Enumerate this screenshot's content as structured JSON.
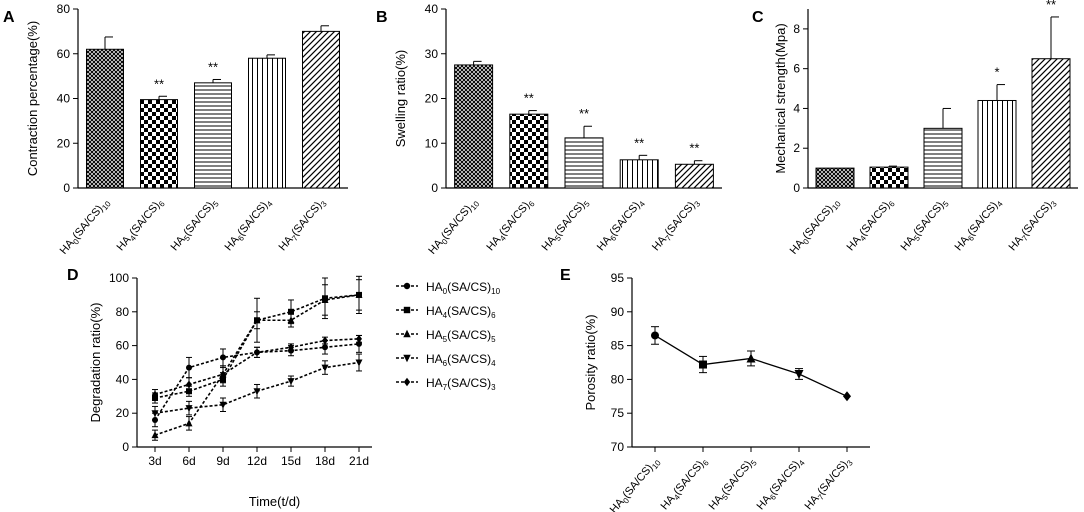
{
  "figure": {
    "categories": [
      {
        "main": "HA",
        "sub1": "0",
        "mid": "(SA/CS)",
        "sub2": "10"
      },
      {
        "main": "HA",
        "sub1": "4",
        "mid": "(SA/CS)",
        "sub2": "6"
      },
      {
        "main": "HA",
        "sub1": "5",
        "mid": "(SA/CS)",
        "sub2": "5"
      },
      {
        "main": "HA",
        "sub1": "6",
        "mid": "(SA/CS)",
        "sub2": "4"
      },
      {
        "main": "HA",
        "sub1": "7",
        "mid": "(SA/CS)",
        "sub2": "3"
      }
    ]
  },
  "chart_data": [
    {
      "panel": "A",
      "type": "bar",
      "title": "",
      "xlabel": "",
      "ylabel": "Contraction percentage(%)",
      "ylim": [
        0,
        80
      ],
      "yticks": [
        0,
        20,
        40,
        60,
        80
      ],
      "values": [
        62,
        39.5,
        47,
        58,
        70
      ],
      "errors": [
        5.5,
        1.5,
        1.5,
        1.5,
        2.5
      ],
      "significance": [
        "",
        "**",
        "**",
        "",
        ""
      ],
      "patterns": [
        "crosshatch",
        "checker",
        "horizontal",
        "vertical",
        "diagonal"
      ]
    },
    {
      "panel": "B",
      "type": "bar",
      "title": "",
      "xlabel": "",
      "ylabel": "Swelling ratio(%)",
      "ylim": [
        0,
        40
      ],
      "yticks": [
        0,
        10,
        20,
        30,
        40
      ],
      "values": [
        27.5,
        16.5,
        11.2,
        6.3,
        5.3
      ],
      "errors": [
        0.8,
        0.8,
        2.6,
        1.0,
        0.8
      ],
      "significance": [
        "",
        "**",
        "**",
        "**",
        "**"
      ],
      "patterns": [
        "crosshatch",
        "checker",
        "horizontal",
        "vertical",
        "diagonal"
      ]
    },
    {
      "panel": "C",
      "type": "bar",
      "title": "",
      "xlabel": "",
      "ylabel": "Mechanical strength(Mpa)",
      "ylim": [
        0,
        9
      ],
      "yticks": [
        0,
        2,
        4,
        6,
        8
      ],
      "values": [
        1.0,
        1.05,
        3.0,
        4.4,
        6.5
      ],
      "errors": [
        0,
        0.05,
        1.0,
        0.8,
        2.1
      ],
      "significance": [
        "",
        "",
        "",
        "*",
        "**"
      ],
      "patterns": [
        "crosshatch",
        "checker",
        "horizontal",
        "vertical",
        "diagonal"
      ]
    },
    {
      "panel": "D",
      "type": "line",
      "title": "",
      "xlabel": "Time(t/d)",
      "ylabel": "Degradation ratio(%)",
      "ylim": [
        0,
        100
      ],
      "yticks": [
        0,
        20,
        40,
        60,
        80,
        100
      ],
      "categories": [
        "3d",
        "6d",
        "9d",
        "12d",
        "15d",
        "18d",
        "21d"
      ],
      "legend_position": "right",
      "series": [
        {
          "name": "HA0(SA/CS)10",
          "marker": "circle",
          "values": [
            16,
            47,
            53,
            56,
            57,
            59,
            61
          ],
          "errors": [
            4,
            6,
            5,
            3,
            3,
            4,
            5
          ]
        },
        {
          "name": "HA4(SA/CS)6",
          "marker": "square",
          "values": [
            29,
            33,
            40,
            75,
            80,
            88,
            90
          ],
          "errors": [
            3,
            3,
            4,
            13,
            7,
            12,
            9
          ]
        },
        {
          "name": "HA5(SA/CS)5",
          "marker": "triangle-up",
          "values": [
            7,
            14,
            43,
            75,
            75,
            87,
            90
          ],
          "errors": [
            3,
            4,
            5,
            5,
            4,
            9,
            11
          ]
        },
        {
          "name": "HA6(SA/CS)4",
          "marker": "triangle-down",
          "values": [
            20,
            23,
            25,
            33,
            39,
            47,
            50
          ],
          "errors": [
            4,
            4,
            4,
            4,
            3,
            4,
            5
          ]
        },
        {
          "name": "HA7(SA/CS)3",
          "marker": "diamond",
          "values": [
            31,
            37,
            43,
            56,
            59,
            63,
            64
          ],
          "errors": [
            3,
            4,
            4,
            3,
            2,
            2,
            2
          ]
        }
      ]
    },
    {
      "panel": "E",
      "type": "line",
      "title": "",
      "xlabel": "",
      "ylabel": "Porosity ratio(%)",
      "ylim": [
        70,
        95
      ],
      "yticks": [
        70,
        75,
        80,
        85,
        90,
        95
      ],
      "values": [
        86.5,
        82.2,
        83.1,
        80.8,
        77.5
      ],
      "errors": [
        1.3,
        1.2,
        1.1,
        0.8,
        0
      ],
      "markers": [
        "circle",
        "square",
        "triangle-up",
        "triangle-down",
        "diamond"
      ]
    }
  ]
}
